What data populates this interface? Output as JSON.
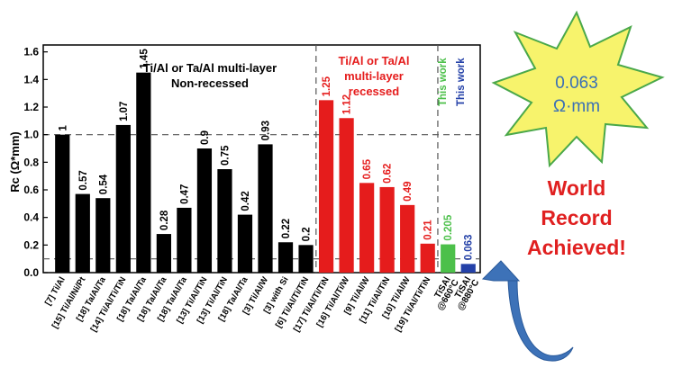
{
  "chart_data": {
    "type": "bar",
    "ylabel": "Rc (Ω*mm)",
    "ylim": [
      0,
      1.65
    ],
    "yticks": [
      "0.0",
      "0.2",
      "0.4",
      "0.6",
      "0.8",
      "1.0",
      "1.2",
      "1.4",
      "1.6"
    ],
    "ytick_values": [
      0,
      0.2,
      0.4,
      0.6,
      0.8,
      1.0,
      1.2,
      1.4,
      1.6
    ],
    "reference_lines": [
      1.0,
      0.1
    ],
    "categories": [
      "[7] Ti/Al",
      "[15] Ti/Al/Ni/Pt",
      "[18] Ta/Al/Ta",
      "[14] Ti/Al/Ti/TiN",
      "[18] Ta/Al/Ta",
      "[18] Ta/Al/Ta",
      "[18] Ta/Al/Ta",
      "[13] Ti/Al/TiN",
      "[13] Ti/Al/TiN",
      "[18] Ta/Al/Ta",
      "[3] Ti/Al/W",
      "[3] with Si",
      "[6] Ti/Al/Ti/TiN",
      "[17] Ti/Al/Ti/TiN",
      "[16] Ti/Al/Ti/W",
      "[9] Ti/Al/W",
      "[11] Ti/Al/TiN",
      "[10] Ti/Al/W",
      "[19] Ti/Al/Ti/TiN",
      "TiSAl",
      "TiSAl"
    ],
    "sub_labels": [
      "",
      "",
      "",
      "",
      "",
      "",
      "",
      "",
      "",
      "",
      "",
      "",
      "",
      "",
      "",
      "",
      "",
      "",
      "",
      "@660°C",
      "@880°C"
    ],
    "values": [
      1,
      0.57,
      0.54,
      1.07,
      1.45,
      0.28,
      0.47,
      0.9,
      0.75,
      0.42,
      0.93,
      0.22,
      0.2,
      1.25,
      1.12,
      0.65,
      0.62,
      0.49,
      0.21,
      0.205,
      0.063
    ],
    "value_labels": [
      "1",
      "0.57",
      "0.54",
      "1.07",
      "1.45",
      "0.28",
      "0.47",
      "0.9",
      "0.75",
      "0.42",
      "0.93",
      "0.22",
      "0.2",
      "1.25",
      "1.12",
      "0.65",
      "0.62",
      "0.49",
      "0.21",
      "0.205",
      "0.063"
    ],
    "groups": [
      "non-recessed",
      "non-recessed",
      "non-recessed",
      "non-recessed",
      "non-recessed",
      "non-recessed",
      "non-recessed",
      "non-recessed",
      "non-recessed",
      "non-recessed",
      "non-recessed",
      "non-recessed",
      "non-recessed",
      "recessed",
      "recessed",
      "recessed",
      "recessed",
      "recessed",
      "recessed",
      "this-work-green",
      "this-work-blue"
    ],
    "group_colors": {
      "non-recessed": "#000000",
      "recessed": "#e51c1c",
      "this-work-green": "#4cc04a",
      "this-work-blue": "#2441a8"
    },
    "annotations": {
      "nonrecessed_line1": "Ti/Al or Ta/Al multi-layer",
      "nonrecessed_line2": "Non-recessed",
      "recessed_line1": "Ti/Al or Ta/Al",
      "recessed_line2": "multi-layer",
      "recessed_line3": "recessed",
      "this_work_green": "This work",
      "this_work_blue": "This work"
    }
  },
  "burst": {
    "value": "0.063",
    "unit": "Ω·mm",
    "fill": "#f7f36c",
    "stroke": "#4aa84a"
  },
  "record": {
    "line1": "World",
    "line2": "Record",
    "line3": "Achieved!"
  },
  "arrow": {
    "color": "#3d72b8"
  }
}
